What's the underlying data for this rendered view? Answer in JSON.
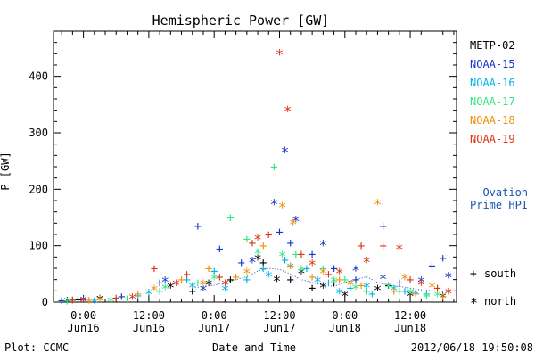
{
  "chart_data": {
    "type": "scatter",
    "title": "Hemispheric Power [GW]",
    "xlabel": "Date and Time",
    "ylabel": "P [GW]",
    "x_units": "hours since 0:00 Jun16",
    "xlim": [
      -5.5,
      68.5
    ],
    "ylim": [
      0,
      480
    ],
    "y_ticks": [
      0,
      100,
      200,
      300,
      400
    ],
    "x_ticks": [
      {
        "x": 0,
        "time": "0:00",
        "date": "Jun16"
      },
      {
        "x": 12,
        "time": "12:00",
        "date": "Jun16"
      },
      {
        "x": 24,
        "time": "0:00",
        "date": "Jun17"
      },
      {
        "x": 36,
        "time": "12:00",
        "date": "Jun17"
      },
      {
        "x": 48,
        "time": "0:00",
        "date": "Jun18"
      },
      {
        "x": 60,
        "time": "12:00",
        "date": "Jun18"
      }
    ],
    "grid": false,
    "legend": [
      {
        "name": "METP-02",
        "color": "#000000"
      },
      {
        "name": "NOAA-15",
        "color": "#1a33cc"
      },
      {
        "name": "NOAA-16",
        "color": "#00b4e6"
      },
      {
        "name": "NOAA-17",
        "color": "#33e680"
      },
      {
        "name": "NOAA-18",
        "color": "#f0900a"
      },
      {
        "name": "NOAA-19",
        "color": "#e03010"
      }
    ],
    "series": [
      {
        "name": "METP-02",
        "color": "#000000",
        "south": [
          [
            -1,
            5
          ],
          [
            20,
            20
          ],
          [
            27,
            40
          ],
          [
            33,
            70
          ],
          [
            38,
            40
          ],
          [
            42,
            25
          ],
          [
            46,
            35
          ],
          [
            52,
            20
          ],
          [
            56,
            30
          ]
        ],
        "north": [
          [
            -3,
            4
          ],
          [
            3,
            8
          ],
          [
            16,
            30
          ],
          [
            23,
            35
          ],
          [
            32,
            80
          ],
          [
            35.5,
            42
          ],
          [
            40,
            55
          ],
          [
            44,
            30
          ],
          [
            48,
            15
          ],
          [
            54,
            25
          ],
          [
            60,
            15
          ],
          [
            66,
            12
          ]
        ]
      },
      {
        "name": "NOAA-15",
        "color": "#1a33cc",
        "south": [
          [
            -4,
            3
          ],
          [
            7,
            10
          ],
          [
            14,
            35
          ],
          [
            21,
            135
          ],
          [
            25,
            95
          ],
          [
            29,
            70
          ],
          [
            36,
            125
          ],
          [
            38,
            105
          ],
          [
            42,
            85
          ],
          [
            46,
            60
          ],
          [
            50,
            40
          ],
          [
            55,
            135
          ],
          [
            58,
            35
          ],
          [
            64,
            65
          ],
          [
            66,
            78
          ]
        ],
        "north": [
          [
            0,
            6
          ],
          [
            15,
            40
          ],
          [
            22,
            25
          ],
          [
            31,
            75
          ],
          [
            35,
            178
          ],
          [
            37,
            270
          ],
          [
            39,
            148
          ],
          [
            44,
            105
          ],
          [
            50,
            60
          ],
          [
            55,
            45
          ],
          [
            62,
            40
          ],
          [
            67,
            48
          ]
        ]
      },
      {
        "name": "NOAA-16",
        "color": "#00b4e6",
        "south": [
          [
            -2,
            5
          ],
          [
            10,
            12
          ],
          [
            19,
            40
          ],
          [
            24,
            55
          ],
          [
            30,
            40
          ],
          [
            33,
            60
          ],
          [
            37,
            75
          ],
          [
            41,
            60
          ],
          [
            45,
            35
          ],
          [
            49,
            25
          ],
          [
            53,
            15
          ],
          [
            59,
            20
          ],
          [
            63,
            15
          ]
        ],
        "north": [
          [
            2,
            3
          ],
          [
            12,
            18
          ],
          [
            20,
            30
          ],
          [
            26,
            25
          ],
          [
            34,
            50
          ],
          [
            38,
            65
          ],
          [
            43,
            40
          ],
          [
            47,
            20
          ],
          [
            52,
            30
          ],
          [
            57,
            25
          ],
          [
            61,
            18
          ]
        ]
      },
      {
        "name": "NOAA-17",
        "color": "#33e680",
        "south": [
          [
            -3,
            2
          ],
          [
            8,
            6
          ],
          [
            14,
            20
          ],
          [
            21,
            35
          ],
          [
            27,
            150
          ],
          [
            30,
            112
          ],
          [
            35,
            240
          ],
          [
            39,
            85
          ],
          [
            44,
            60
          ],
          [
            48,
            40
          ],
          [
            52,
            20
          ],
          [
            58,
            20
          ],
          [
            63,
            12
          ]
        ],
        "north": [
          [
            5,
            5
          ],
          [
            15,
            28
          ],
          [
            24,
            45
          ],
          [
            32,
            90
          ],
          [
            36.5,
            85
          ],
          [
            40,
            60
          ],
          [
            46,
            40
          ],
          [
            50,
            28
          ],
          [
            56,
            30
          ],
          [
            60,
            20
          ],
          [
            65,
            15
          ]
        ]
      },
      {
        "name": "NOAA-18",
        "color": "#f0900a",
        "south": [
          [
            1,
            4
          ],
          [
            10,
            15
          ],
          [
            18,
            40
          ],
          [
            23,
            60
          ],
          [
            28,
            45
          ],
          [
            33,
            100
          ],
          [
            38,
            65
          ],
          [
            42,
            45
          ],
          [
            47,
            40
          ],
          [
            51,
            30
          ],
          [
            57,
            20
          ],
          [
            61,
            15
          ],
          [
            66,
            10
          ]
        ],
        "north": [
          [
            3,
            6
          ],
          [
            13,
            25
          ],
          [
            22,
            35
          ],
          [
            30,
            55
          ],
          [
            36.5,
            172
          ],
          [
            38.5,
            142
          ],
          [
            44,
            55
          ],
          [
            49,
            35
          ],
          [
            54,
            178
          ],
          [
            59,
            45
          ],
          [
            64,
            30
          ]
        ]
      },
      {
        "name": "NOAA-19",
        "color": "#e03010",
        "south": [
          [
            -2,
            4
          ],
          [
            6,
            8
          ],
          [
            13,
            60
          ],
          [
            19,
            50
          ],
          [
            25,
            45
          ],
          [
            31,
            105
          ],
          [
            34,
            120
          ],
          [
            40,
            85
          ],
          [
            45,
            50
          ],
          [
            51,
            100
          ],
          [
            55,
            100
          ],
          [
            60,
            40
          ],
          [
            65,
            25
          ]
        ],
        "north": [
          [
            0,
            5
          ],
          [
            9,
            10
          ],
          [
            17,
            35
          ],
          [
            26,
            35
          ],
          [
            32,
            115
          ],
          [
            36,
            443
          ],
          [
            37.5,
            343
          ],
          [
            42,
            70
          ],
          [
            47,
            55
          ],
          [
            52,
            75
          ],
          [
            58,
            98
          ],
          [
            62,
            35
          ],
          [
            67,
            20
          ]
        ]
      }
    ],
    "ovation": {
      "label_line1": "— Ovation",
      "label_line2": "Prime HPI",
      "color": "#1a55b0",
      "x": [
        20,
        22,
        24,
        26,
        28,
        30,
        32,
        34,
        36,
        38,
        40,
        42,
        44,
        46,
        48,
        50,
        52,
        54,
        56,
        58,
        60,
        62,
        64,
        66
      ],
      "y": [
        25,
        28,
        30,
        35,
        40,
        45,
        55,
        60,
        58,
        50,
        40,
        35,
        30,
        28,
        35,
        40,
        45,
        35,
        30,
        28,
        25,
        22,
        20,
        18
      ]
    },
    "markers": {
      "south_symbol": "+",
      "south_label": "south",
      "north_symbol": "*",
      "north_label": "north"
    },
    "footer": {
      "left": "Plot: CCMC",
      "right": "2012/06/18 19:50:08"
    }
  }
}
